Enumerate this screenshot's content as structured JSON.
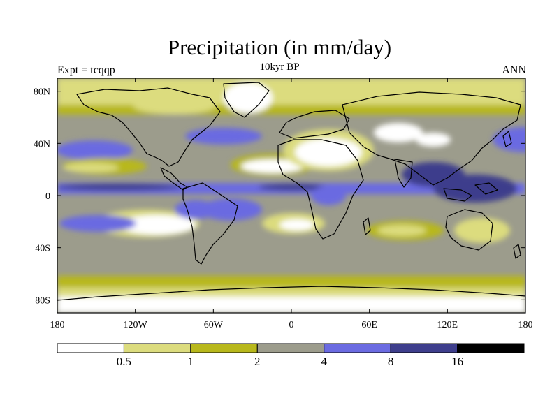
{
  "header": {
    "title": "Precipitation (in mm/day)",
    "subtitle": "10kyr BP",
    "left_label": "Expt = tcqqp",
    "right_label": "ANN"
  },
  "map": {
    "projection": "cylindrical equidistant",
    "lon_range": [
      -180,
      180
    ],
    "lat_range": [
      -90,
      90
    ],
    "lon_ticks": [
      {
        "value": -180,
        "label": "180"
      },
      {
        "value": -120,
        "label": "120W"
      },
      {
        "value": -60,
        "label": "60W"
      },
      {
        "value": 0,
        "label": "0"
      },
      {
        "value": 60,
        "label": "60E"
      },
      {
        "value": 120,
        "label": "120E"
      },
      {
        "value": 180,
        "label": "180"
      }
    ],
    "lat_ticks": [
      {
        "value": 80,
        "label": "80N"
      },
      {
        "value": 40,
        "label": "40N"
      },
      {
        "value": 0,
        "label": "0"
      },
      {
        "value": -40,
        "label": "40S"
      },
      {
        "value": -80,
        "label": "80S"
      }
    ]
  },
  "colorbar": {
    "levels": [
      {
        "label": "0.5"
      },
      {
        "label": "1"
      },
      {
        "label": "2"
      },
      {
        "label": "4"
      },
      {
        "label": "8"
      },
      {
        "label": "16"
      }
    ],
    "colors": [
      "#ffffff",
      "#dcdc7e",
      "#b8b81c",
      "#9c9c8c",
      "#6b6be1",
      "#3e3e8c",
      "#000000"
    ]
  }
}
